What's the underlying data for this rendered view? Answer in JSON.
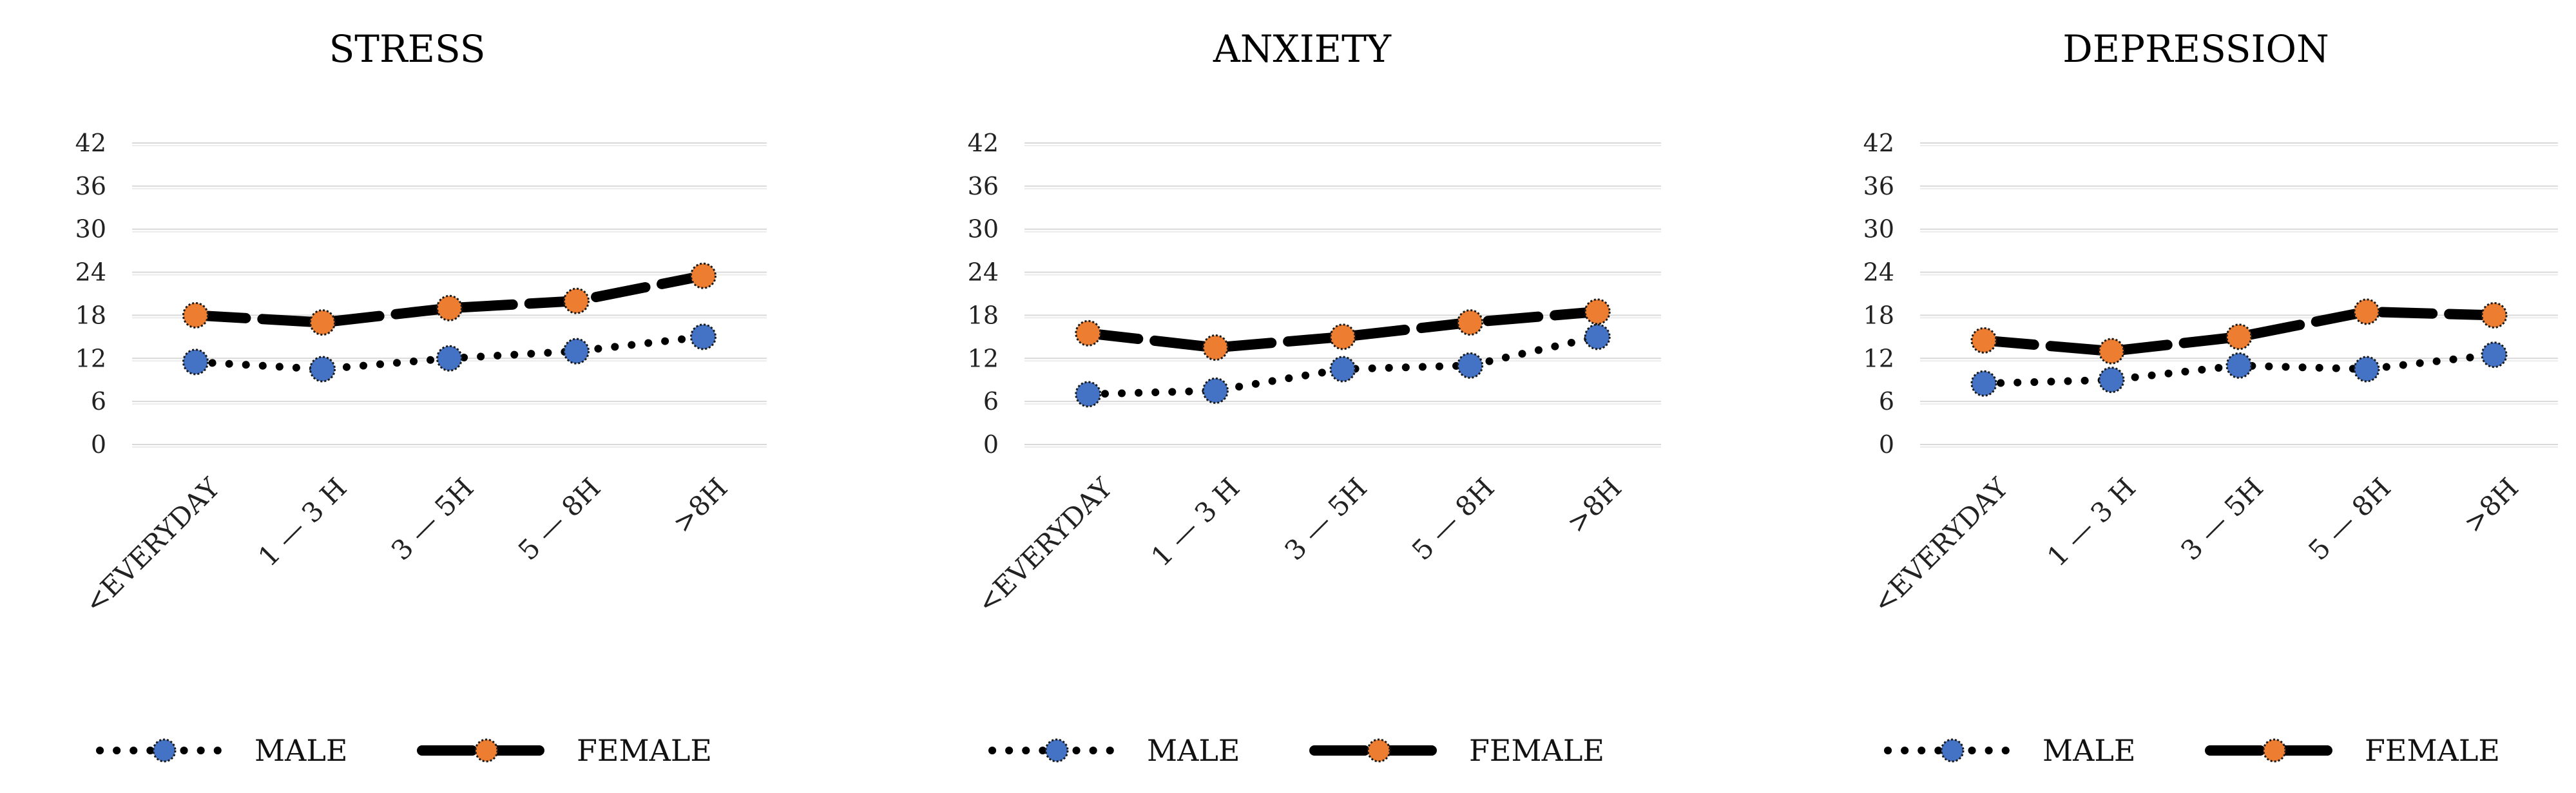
{
  "chart_data": [
    {
      "type": "line",
      "title": "STRESS",
      "categories": [
        "<EVERYDAY",
        "1 — 3 H",
        "3 — 5H",
        "5 — 8H",
        ">8H"
      ],
      "yticks": [
        "0",
        "6",
        "12",
        "18",
        "24",
        "30",
        "36",
        "42"
      ],
      "ylim": [
        0,
        42
      ],
      "grid": true,
      "legend": "bottom",
      "series": [
        {
          "name": "MALE",
          "values": [
            11.5,
            10.5,
            12,
            13,
            15
          ],
          "color": "#4472c4",
          "line_style": "dotted"
        },
        {
          "name": "FEMALE",
          "values": [
            18,
            17,
            19,
            20,
            23.5
          ],
          "color": "#ed7d31",
          "line_style": "dashed"
        }
      ]
    },
    {
      "type": "line",
      "title": "ANXIETY",
      "categories": [
        "<EVERYDAY",
        "1 — 3 H",
        "3 — 5H",
        "5 — 8H",
        ">8H"
      ],
      "yticks": [
        "0",
        "6",
        "12",
        "18",
        "24",
        "30",
        "36",
        "42"
      ],
      "ylim": [
        0,
        42
      ],
      "grid": true,
      "legend": "bottom",
      "series": [
        {
          "name": "MALE",
          "values": [
            7,
            7.5,
            10.5,
            11,
            15
          ],
          "color": "#4472c4",
          "line_style": "dotted"
        },
        {
          "name": "FEMALE",
          "values": [
            15.5,
            13.5,
            15,
            17,
            18.5
          ],
          "color": "#ed7d31",
          "line_style": "dashed"
        }
      ]
    },
    {
      "type": "line",
      "title": "DEPRESSION",
      "categories": [
        "<EVERYDAY",
        "1 — 3 H",
        "3 — 5H",
        "5 — 8H",
        ">8H"
      ],
      "yticks": [
        "0",
        "6",
        "12",
        "18",
        "24",
        "30",
        "36",
        "42"
      ],
      "ylim": [
        0,
        42
      ],
      "grid": true,
      "legend": "bottom",
      "series": [
        {
          "name": "MALE",
          "values": [
            8.5,
            9,
            11,
            10.5,
            12.5
          ],
          "color": "#4472c4",
          "line_style": "dotted"
        },
        {
          "name": "FEMALE",
          "values": [
            14.5,
            13,
            15,
            18.5,
            18
          ],
          "color": "#ed7d31",
          "line_style": "dashed"
        }
      ]
    }
  ]
}
